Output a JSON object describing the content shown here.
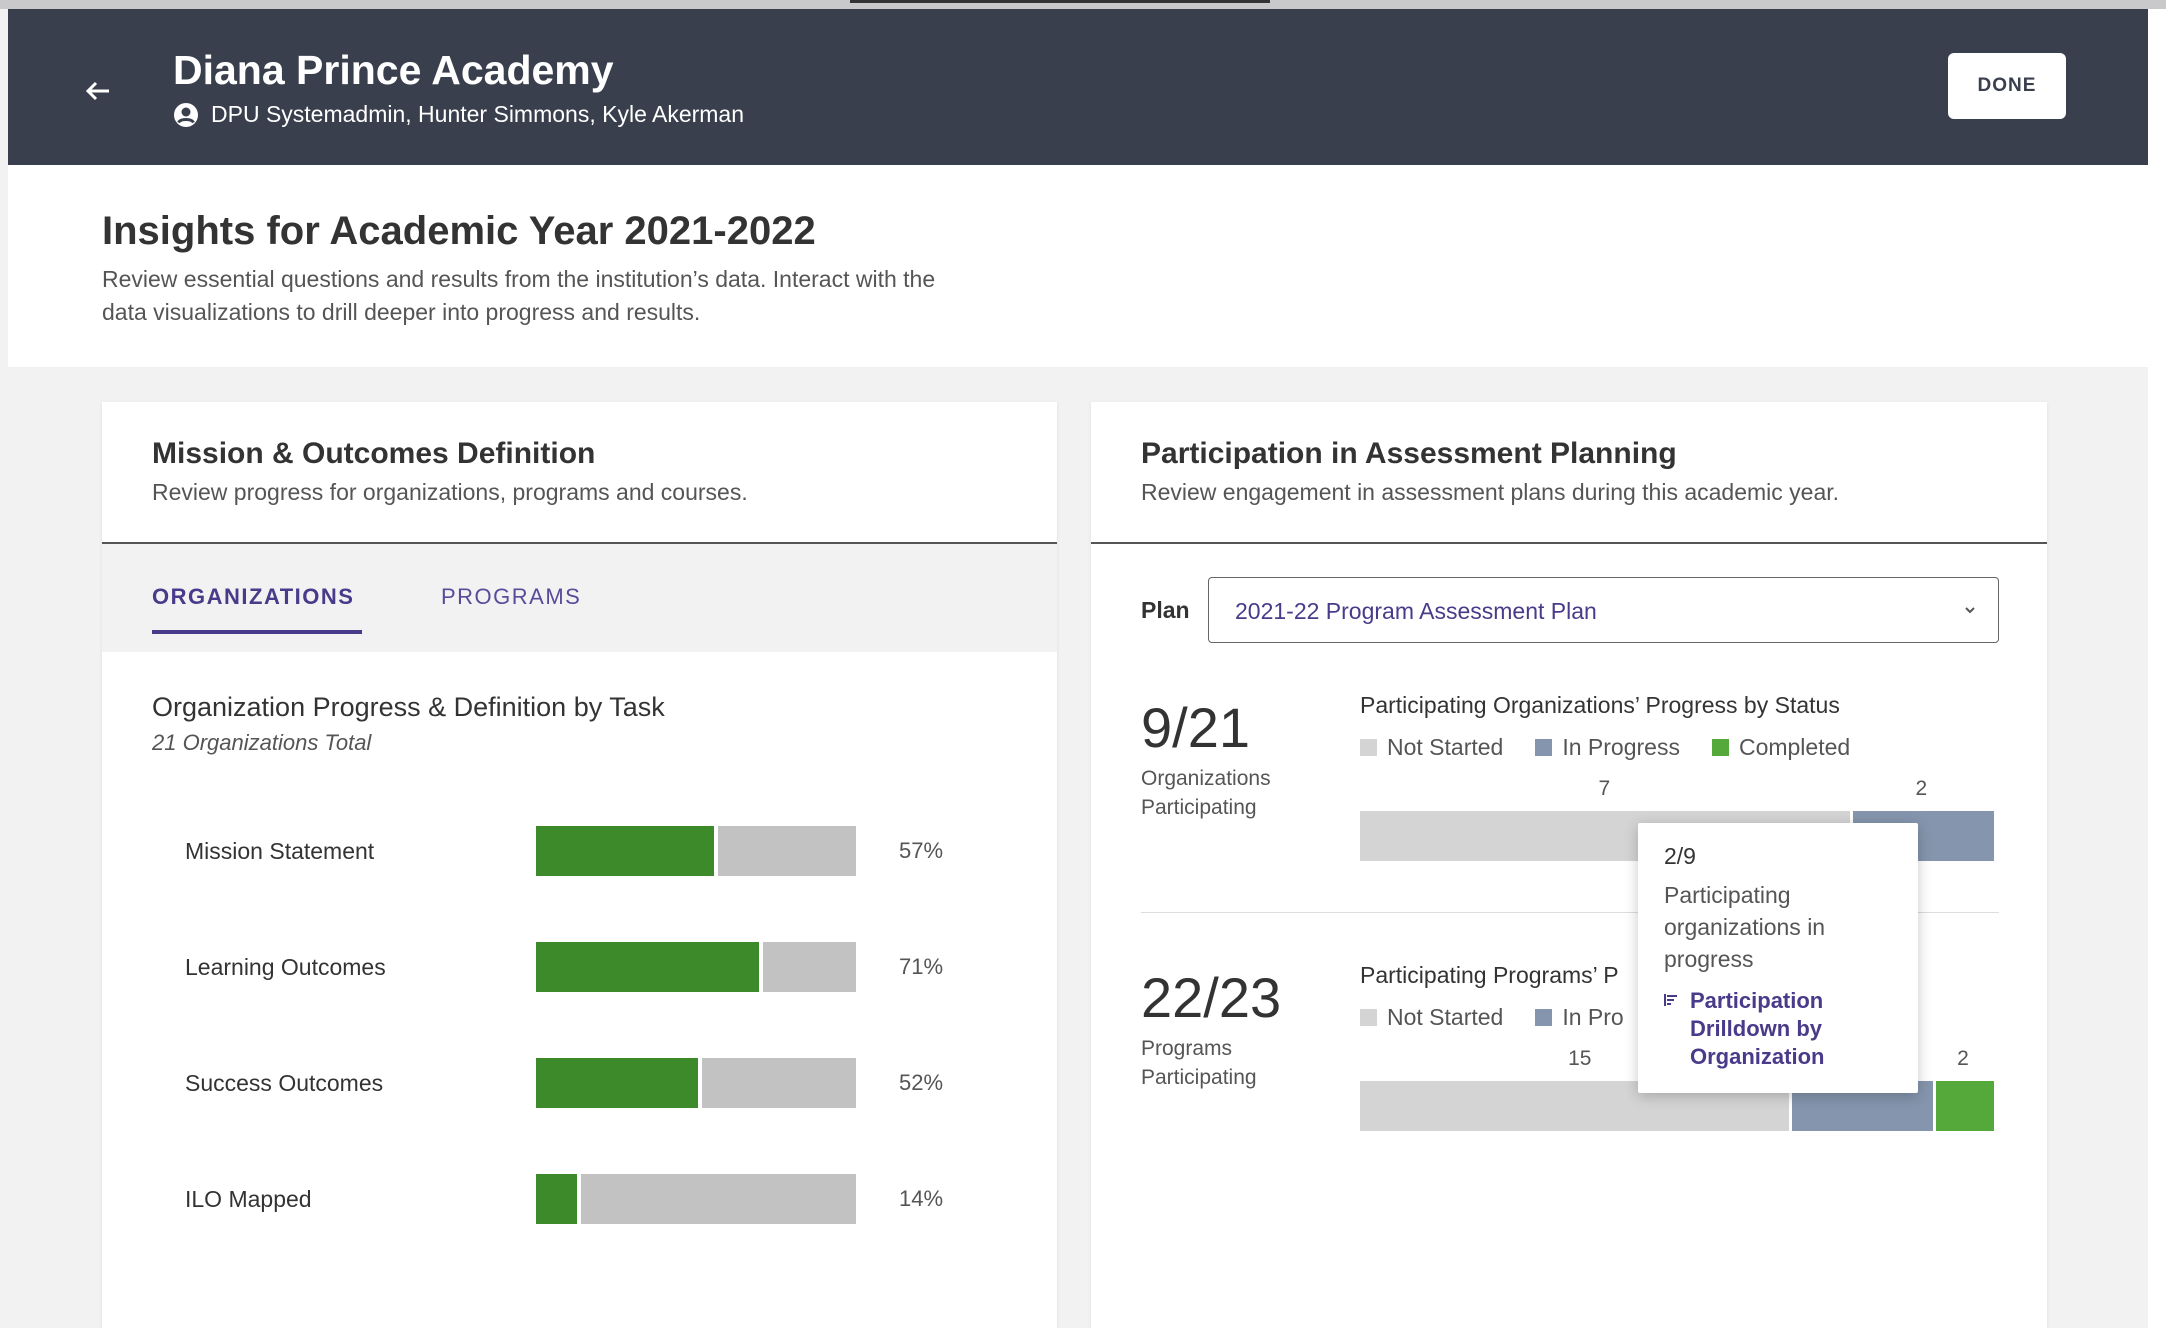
{
  "header": {
    "title": "Diana Prince Academy",
    "users": "DPU Systemadmin, Hunter Simmons, Kyle Akerman",
    "done_label": "DONE",
    "icons": {
      "back": "arrow-left-icon",
      "user": "account-circle-icon"
    }
  },
  "intro": {
    "title": "Insights for Academic Year 2021-2022",
    "description": "Review essential questions and results from the institution’s data. Interact with the data visualizations to drill deeper into progress and results."
  },
  "mission_card": {
    "title": "Mission & Outcomes Definition",
    "subtitle": "Review progress for organizations, programs and courses.",
    "tabs": [
      {
        "label": "ORGANIZATIONS",
        "active": true
      },
      {
        "label": "PROGRAMS",
        "active": false
      }
    ],
    "chart_title": "Organization Progress & Definition by Task",
    "chart_subtitle": "21 Organizations Total",
    "tasks": [
      {
        "label": "Mission Statement",
        "pct_label": "57%",
        "value": 0.57
      },
      {
        "label": "Learning Outcomes",
        "pct_label": "71%",
        "value": 0.71
      },
      {
        "label": "Success Outcomes",
        "pct_label": "52%",
        "value": 0.52
      },
      {
        "label": "ILO Mapped",
        "pct_label": "14%",
        "value": 0.14
      }
    ],
    "colors": {
      "complete": "#3d8a2a",
      "remaining": "#c2c2c2"
    }
  },
  "participation_card": {
    "title": "Participation in Assessment Planning",
    "subtitle": "Review engagement in assessment plans during this academic year.",
    "plan_label": "Plan",
    "plan_value": "2021-22 Program Assessment Plan",
    "organizations": {
      "big_number": "9/21",
      "big_label": "Organizations Participating",
      "chart_title": "Participating Organizations’ Progress by Status",
      "legend": [
        "Not Started",
        "In Progress",
        "Completed"
      ],
      "segments": [
        {
          "status": "Not Started",
          "value": 7,
          "label": "7"
        },
        {
          "status": "In Progress",
          "value": 2,
          "label": "2"
        },
        {
          "status": "Completed",
          "value": 0,
          "label": ""
        }
      ]
    },
    "programs": {
      "big_number": "22/23",
      "big_label": "Programs Participating",
      "chart_title": "Participating Programs’ P",
      "legend": [
        "Not Started",
        "In Pro"
      ],
      "segments": [
        {
          "status": "Not Started",
          "value": 15,
          "label": "15"
        },
        {
          "status": "In Progress",
          "value": 5,
          "label": ""
        },
        {
          "status": "Completed",
          "value": 2,
          "label": "2"
        }
      ]
    },
    "colors": {
      "not_started": "#d4d4d4",
      "in_progress": "#8595ad",
      "completed": "#55a83a"
    },
    "tooltip": {
      "value": "2/9",
      "text": "Participating organizations in progress",
      "link": "Participation Drilldown by Organization"
    }
  },
  "chart_data": [
    {
      "type": "bar",
      "title": "Organization Progress & Definition by Task",
      "categories": [
        "Mission Statement",
        "Learning Outcomes",
        "Success Outcomes",
        "ILO Mapped"
      ],
      "values": [
        57,
        71,
        52,
        14
      ],
      "ylim": [
        0,
        100
      ]
    },
    {
      "type": "bar",
      "title": "Participating Organizations’ Progress by Status",
      "categories": [
        "Not Started",
        "In Progress",
        "Completed"
      ],
      "values": [
        7,
        2,
        0
      ]
    },
    {
      "type": "bar",
      "title": "Participating Programs’ P",
      "categories": [
        "Not Started",
        "In Progress",
        "Completed"
      ],
      "values": [
        15,
        5,
        2
      ]
    }
  ]
}
